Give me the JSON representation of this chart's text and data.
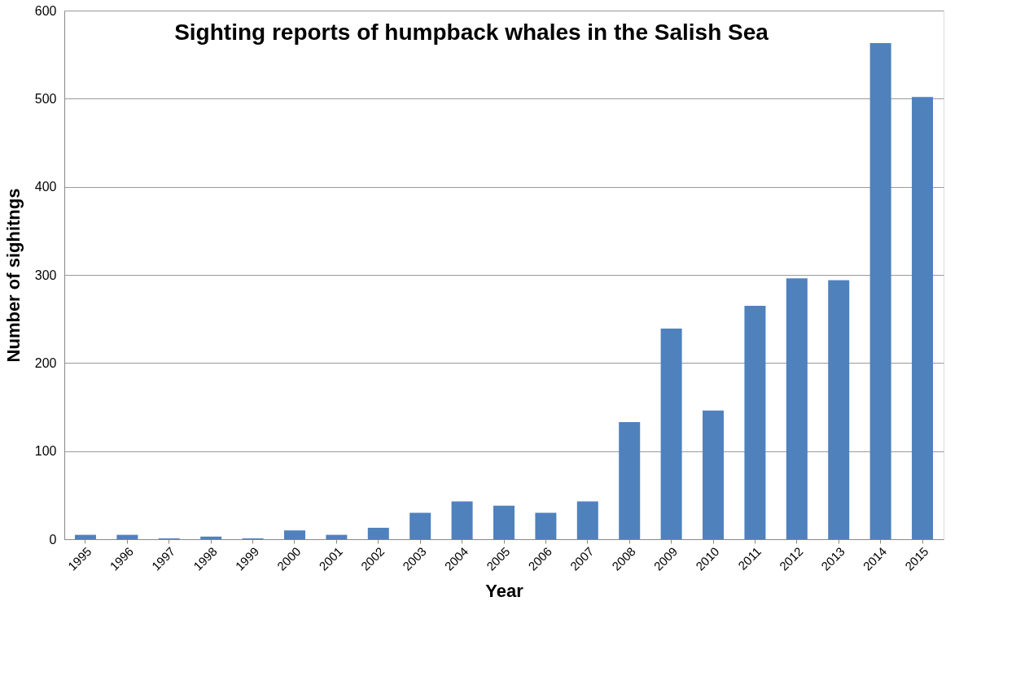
{
  "chart_data": {
    "type": "bar",
    "title": "Sighting reports of humpback whales in the Salish Sea",
    "xlabel": "Year",
    "ylabel": "Number of sighitngs",
    "categories": [
      "1995",
      "1996",
      "1997",
      "1998",
      "1999",
      "2000",
      "2001",
      "2002",
      "2003",
      "2004",
      "2005",
      "2006",
      "2007",
      "2008",
      "2009",
      "2010",
      "2011",
      "2012",
      "2013",
      "2014",
      "2015"
    ],
    "values": [
      5,
      5,
      1,
      3,
      1,
      10,
      5,
      13,
      30,
      43,
      38,
      30,
      43,
      133,
      239,
      146,
      265,
      296,
      294,
      563,
      502
    ],
    "color": "#4f81bd",
    "ylim": [
      0,
      600
    ],
    "yticks": [
      0,
      100,
      200,
      300,
      400,
      500,
      600
    ],
    "grid": "y"
  }
}
